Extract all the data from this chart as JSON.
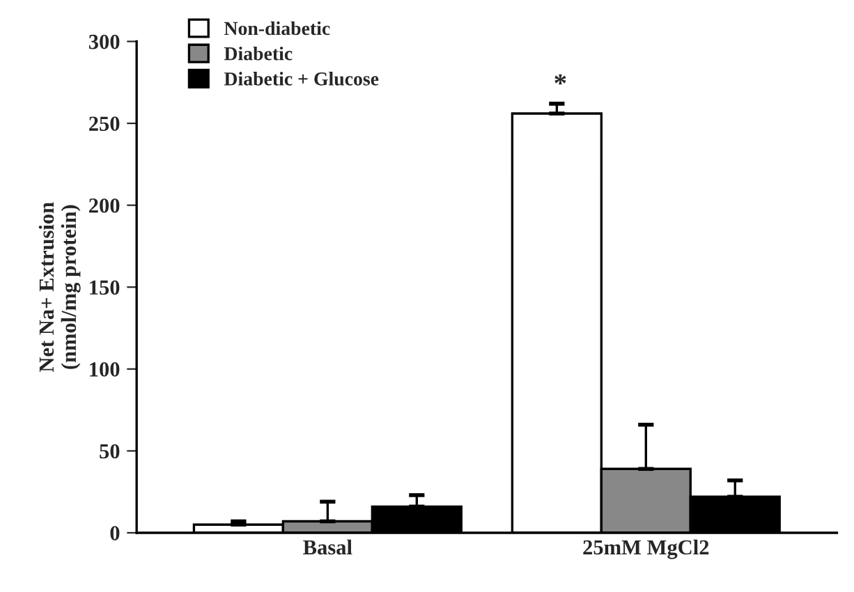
{
  "chart_data": {
    "type": "bar",
    "ylabel": "Net Na+ Extrusion\n(nmol/mg protein)",
    "categories": [
      "Basal",
      "25mM MgCl2"
    ],
    "series": [
      {
        "name": "Non-diabetic",
        "color": "#ffffff",
        "values": [
          5,
          256
        ],
        "errors": [
          [
            5,
            7
          ],
          [
            256,
            262
          ]
        ]
      },
      {
        "name": "Diabetic",
        "color": "#888888",
        "values": [
          7,
          39
        ],
        "errors": [
          [
            7,
            19
          ],
          [
            39,
            66
          ]
        ]
      },
      {
        "name": "Diabetic + Glucose",
        "color": "#000000",
        "values": [
          16,
          22
        ],
        "errors": [
          [
            16,
            23
          ],
          [
            22,
            32
          ]
        ]
      }
    ],
    "ylim": [
      0,
      300
    ],
    "yticks": [
      0,
      50,
      100,
      150,
      200,
      250,
      300
    ],
    "annotations": [
      "*"
    ],
    "legend": "top left",
    "grid": false
  }
}
